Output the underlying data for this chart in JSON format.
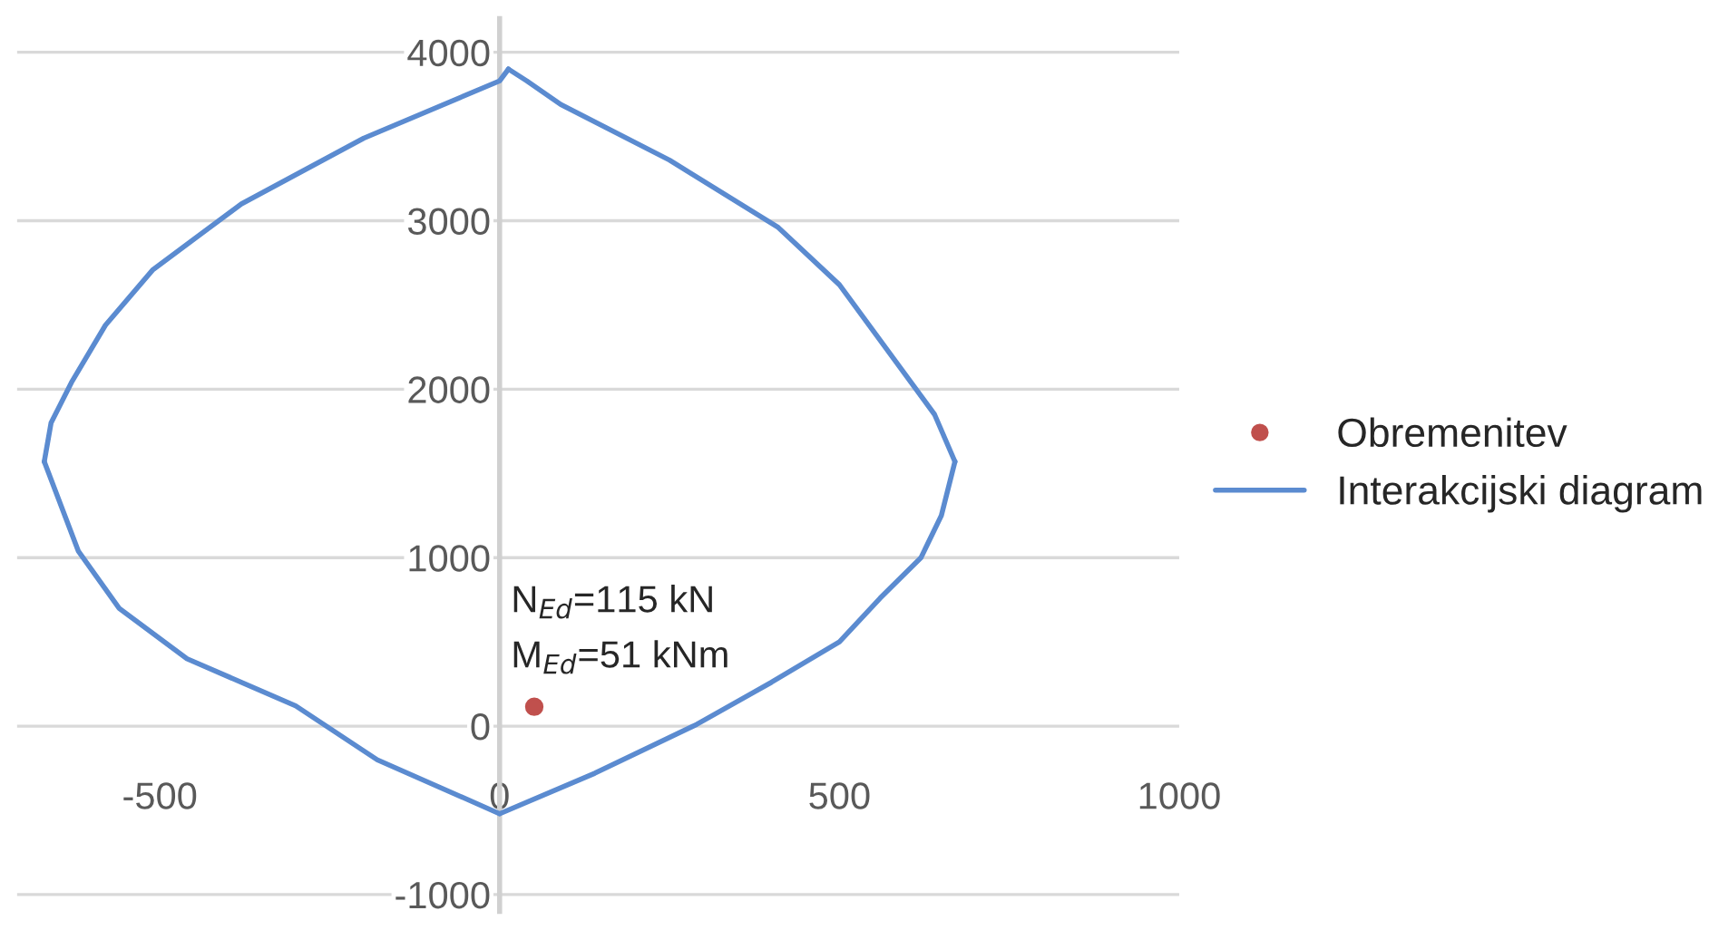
{
  "chart_data": {
    "type": "line",
    "series": [
      {
        "name": "Obremenitev",
        "type": "scatter",
        "color": "#c0504d",
        "marker": "circle",
        "x": [
          51
        ],
        "values": [
          115
        ]
      },
      {
        "name": "Interakcijski diagram",
        "color": "#5b8bd0",
        "marker": "none",
        "line_style": "solid",
        "x": [
          -670,
          -660,
          -630,
          -580,
          -510,
          -380,
          -200,
          0,
          13
        ],
        "values": [
          1570,
          1800,
          2040,
          2380,
          2710,
          3100,
          3490,
          3830,
          3900
        ]
      },
      {
        "color": "#5b8bd0",
        "marker": "none",
        "line_style": "solid",
        "x": [
          13,
          40,
          90,
          250,
          410,
          500,
          580,
          640,
          670
        ],
        "values": [
          3900,
          3830,
          3690,
          3360,
          2960,
          2620,
          2180,
          1850,
          1570
        ]
      },
      {
        "color": "#5b8bd0",
        "marker": "none",
        "line_style": "solid",
        "x": [
          0,
          140,
          290,
          400,
          500,
          560,
          620,
          650,
          670
        ],
        "values": [
          -520,
          -280,
          10,
          260,
          500,
          760,
          1000,
          1250,
          1570
        ]
      },
      {
        "color": "#5b8bd0",
        "marker": "none",
        "line_style": "solid",
        "x": [
          -670,
          -620,
          -560,
          -460,
          -300,
          -180,
          0
        ],
        "values": [
          1570,
          1040,
          700,
          400,
          120,
          -200,
          -520
        ]
      }
    ],
    "annotations": [
      "N$_{Ed}$=115 kN",
      "M$_{Ed}$=51 kNm"
    ],
    "xlim": [
      -710,
      1000
    ],
    "xticks": [
      -500,
      0,
      500,
      1000
    ],
    "ylim": [
      -1100,
      4200
    ],
    "yticks": [
      -1000,
      0,
      1000,
      2000,
      3000,
      4000
    ],
    "grid": "y",
    "legend": "right"
  }
}
